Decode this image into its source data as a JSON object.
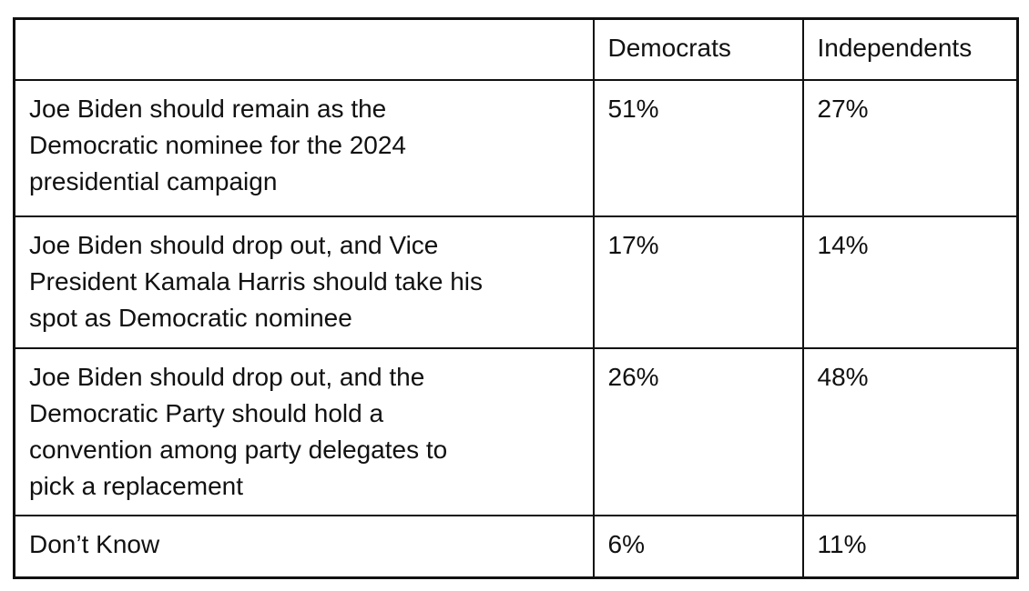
{
  "page": {
    "background": "#ffffff"
  },
  "colors": {
    "text": "#111111",
    "border": "#111111",
    "cell_background": "#ffffff"
  },
  "table": {
    "columns": [
      {
        "label": ""
      },
      {
        "label": "Democrats"
      },
      {
        "label": "Independents"
      }
    ],
    "rows": [
      {
        "statement": "Joe Biden should remain as the\nDemocratic nominee for the 2024\npresidential campaign",
        "democrats": {
          "value": "51%",
          "bold": true
        },
        "independents": {
          "value": "27%",
          "bold": false
        }
      },
      {
        "statement": "Joe Biden should drop out, and Vice\nPresident Kamala Harris should take his\nspot as Democratic nominee",
        "democrats": {
          "value": "17%",
          "bold": false
        },
        "independents": {
          "value": "14%",
          "bold": false
        }
      },
      {
        "statement": "Joe Biden should drop out, and the\nDemocratic Party should hold a\nconvention among party delegates to\npick a replacement",
        "democrats": {
          "value": "26%",
          "bold": false
        },
        "independents": {
          "value": "48%",
          "bold": true
        }
      },
      {
        "statement": "Don’t Know",
        "democrats": {
          "value": "6%",
          "bold": false
        },
        "independents": {
          "value": "11%",
          "bold": false
        }
      }
    ]
  },
  "chart_data": {
    "type": "table",
    "title": "",
    "columns": [
      "",
      "Democrats",
      "Independents"
    ],
    "rows": [
      [
        "Joe Biden should remain as the Democratic nominee for the 2024 presidential campaign",
        "51%",
        "27%"
      ],
      [
        "Joe Biden should drop out, and Vice President Kamala Harris should take his spot as Democratic nominee",
        "17%",
        "14%"
      ],
      [
        "Joe Biden should drop out, and the Democratic Party should hold a convention among party delegates to pick a replacement",
        "26%",
        "48%"
      ],
      [
        "Don’t Know",
        "6%",
        "11%"
      ]
    ],
    "series": [
      {
        "name": "Democrats",
        "values": [
          51,
          17,
          26,
          6
        ]
      },
      {
        "name": "Independents",
        "values": [
          27,
          14,
          48,
          11
        ]
      }
    ],
    "categories": [
      "Joe Biden should remain as the Democratic nominee for the 2024 presidential campaign",
      "Joe Biden should drop out, and Vice President Kamala Harris should take his spot as Democratic nominee",
      "Joe Biden should drop out, and the Democratic Party should hold a convention among party delegates to pick a replacement",
      "Don’t Know"
    ],
    "highlighted_cells": [
      {
        "row": 0,
        "column": "Democrats",
        "value": "51%"
      },
      {
        "row": 2,
        "column": "Independents",
        "value": "48%"
      }
    ],
    "unit": "percent"
  }
}
